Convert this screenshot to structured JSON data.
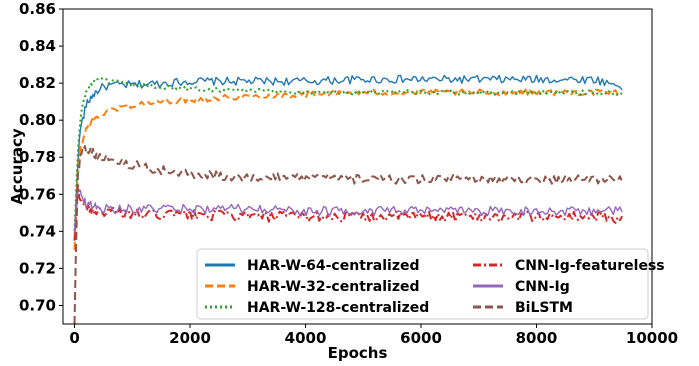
{
  "chart_data": {
    "type": "line",
    "title": "",
    "xlabel": "Epochs",
    "ylabel": "Accuracy",
    "xlim": [
      -200,
      10000
    ],
    "ylim": [
      0.69,
      0.86
    ],
    "xticks": [
      0,
      2000,
      4000,
      6000,
      8000,
      10000
    ],
    "xtick_labels": [
      "0",
      "2000",
      "4000",
      "6000",
      "8000",
      "10000"
    ],
    "yticks": [
      0.7,
      0.72,
      0.74,
      0.76,
      0.78,
      0.8,
      0.82,
      0.84,
      0.86
    ],
    "ytick_labels": [
      "0.70",
      "0.72",
      "0.74",
      "0.76",
      "0.78",
      "0.80",
      "0.82",
      "0.84",
      "0.86"
    ],
    "grid": false,
    "legend_position": "lower-right",
    "legend_columns": 2,
    "series": [
      {
        "name": "HAR-W-64-centralized",
        "color": "#1f77b4",
        "dash": "solid",
        "x": [
          0,
          50,
          100,
          200,
          300,
          400,
          500,
          700,
          1000,
          1500,
          2000,
          3000,
          4000,
          5000,
          6000,
          7000,
          8000,
          9000,
          9500
        ],
        "y": [
          0.735,
          0.775,
          0.795,
          0.808,
          0.813,
          0.816,
          0.818,
          0.819,
          0.819,
          0.82,
          0.821,
          0.821,
          0.821,
          0.822,
          0.822,
          0.822,
          0.822,
          0.822,
          0.818
        ],
        "noise": 0.0022
      },
      {
        "name": "HAR-W-32-centralized",
        "color": "#ff7f0e",
        "dash": "dashed",
        "x": [
          0,
          50,
          100,
          200,
          300,
          400,
          600,
          800,
          1000,
          1500,
          2000,
          3000,
          4000,
          5000,
          6000,
          7000,
          8000,
          9000,
          9500
        ],
        "y": [
          0.73,
          0.77,
          0.785,
          0.795,
          0.8,
          0.802,
          0.805,
          0.807,
          0.808,
          0.81,
          0.811,
          0.813,
          0.814,
          0.815,
          0.815,
          0.815,
          0.815,
          0.815,
          0.815
        ],
        "noise": 0.0016
      },
      {
        "name": "HAR-W-128-centralized",
        "color": "#2ca02c",
        "dash": "dotted",
        "x": [
          0,
          50,
          100,
          150,
          200,
          300,
          400,
          600,
          800,
          1000,
          1500,
          2000,
          3000,
          4000,
          5000,
          6000,
          7000,
          8000,
          9000,
          9500
        ],
        "y": [
          0.74,
          0.78,
          0.8,
          0.81,
          0.815,
          0.82,
          0.822,
          0.821,
          0.82,
          0.819,
          0.818,
          0.817,
          0.816,
          0.815,
          0.815,
          0.815,
          0.815,
          0.815,
          0.815,
          0.814
        ],
        "noise": 0.0012
      },
      {
        "name": "CNN-Ig-featureless",
        "color": "#d62728",
        "dash": "dashdot",
        "x": [
          0,
          50,
          100,
          200,
          400,
          700,
          1000,
          2000,
          3000,
          4000,
          5000,
          6000,
          7000,
          8000,
          9000,
          9500
        ],
        "y": [
          0.735,
          0.765,
          0.758,
          0.753,
          0.751,
          0.75,
          0.749,
          0.749,
          0.748,
          0.748,
          0.748,
          0.748,
          0.748,
          0.748,
          0.748,
          0.747
        ],
        "noise": 0.0028
      },
      {
        "name": "CNN-Ig",
        "color": "#9467bd",
        "dash": "solid",
        "x": [
          0,
          50,
          100,
          200,
          400,
          700,
          1000,
          2000,
          3000,
          4000,
          5000,
          6000,
          7000,
          8000,
          9000,
          9500
        ],
        "y": [
          0.74,
          0.763,
          0.76,
          0.755,
          0.753,
          0.752,
          0.752,
          0.752,
          0.752,
          0.751,
          0.751,
          0.751,
          0.751,
          0.751,
          0.751,
          0.751
        ],
        "noise": 0.0025
      },
      {
        "name": "BiLSTM",
        "color": "#8c564b",
        "dash": "dashed",
        "x": [
          0,
          30,
          60,
          100,
          150,
          200,
          400,
          700,
          1000,
          1500,
          2000,
          3000,
          4000,
          5000,
          6000,
          7000,
          8000,
          9000,
          9500
        ],
        "y": [
          0.69,
          0.74,
          0.77,
          0.782,
          0.786,
          0.785,
          0.781,
          0.778,
          0.776,
          0.773,
          0.771,
          0.769,
          0.769,
          0.768,
          0.768,
          0.768,
          0.768,
          0.768,
          0.769
        ],
        "noise": 0.0024
      }
    ]
  }
}
